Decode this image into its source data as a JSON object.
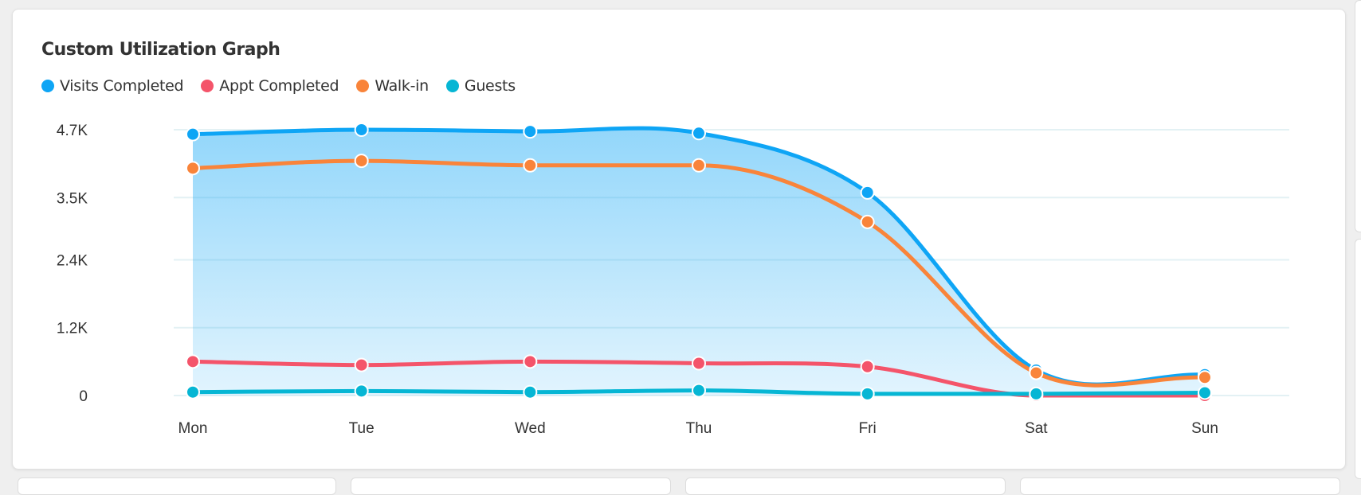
{
  "chart_data": {
    "type": "line",
    "title": "Custom Utilization Graph",
    "xlabel": "",
    "ylabel": "",
    "categories": [
      "Mon",
      "Tue",
      "Wed",
      "Thu",
      "Fri",
      "Sat",
      "Sun"
    ],
    "y_ticks": [
      0,
      1.2,
      2.4,
      3.5,
      4.7
    ],
    "y_tick_labels": [
      "0",
      "1.2K",
      "2.4K",
      "3.5K",
      "4.7K"
    ],
    "ylim": [
      0,
      4.7
    ],
    "y_unit": "thousands",
    "grid": true,
    "legend_position": "top-left",
    "series": [
      {
        "name": "Visits Completed",
        "color": "#0ea5f5",
        "area": true,
        "values": [
          4.62,
          4.7,
          4.67,
          4.64,
          3.59,
          0.45,
          0.37
        ]
      },
      {
        "name": "Appt Completed",
        "color": "#f4546a",
        "area": false,
        "values": [
          0.6,
          0.54,
          0.6,
          0.57,
          0.51,
          0.0,
          0.0
        ]
      },
      {
        "name": "Walk-in",
        "color": "#f9843a",
        "area": false,
        "values": [
          4.02,
          4.15,
          4.07,
          4.07,
          3.07,
          0.4,
          0.32
        ]
      },
      {
        "name": "Guests",
        "color": "#06b6d4",
        "area": false,
        "values": [
          0.06,
          0.08,
          0.06,
          0.09,
          0.03,
          0.03,
          0.05
        ]
      }
    ]
  }
}
